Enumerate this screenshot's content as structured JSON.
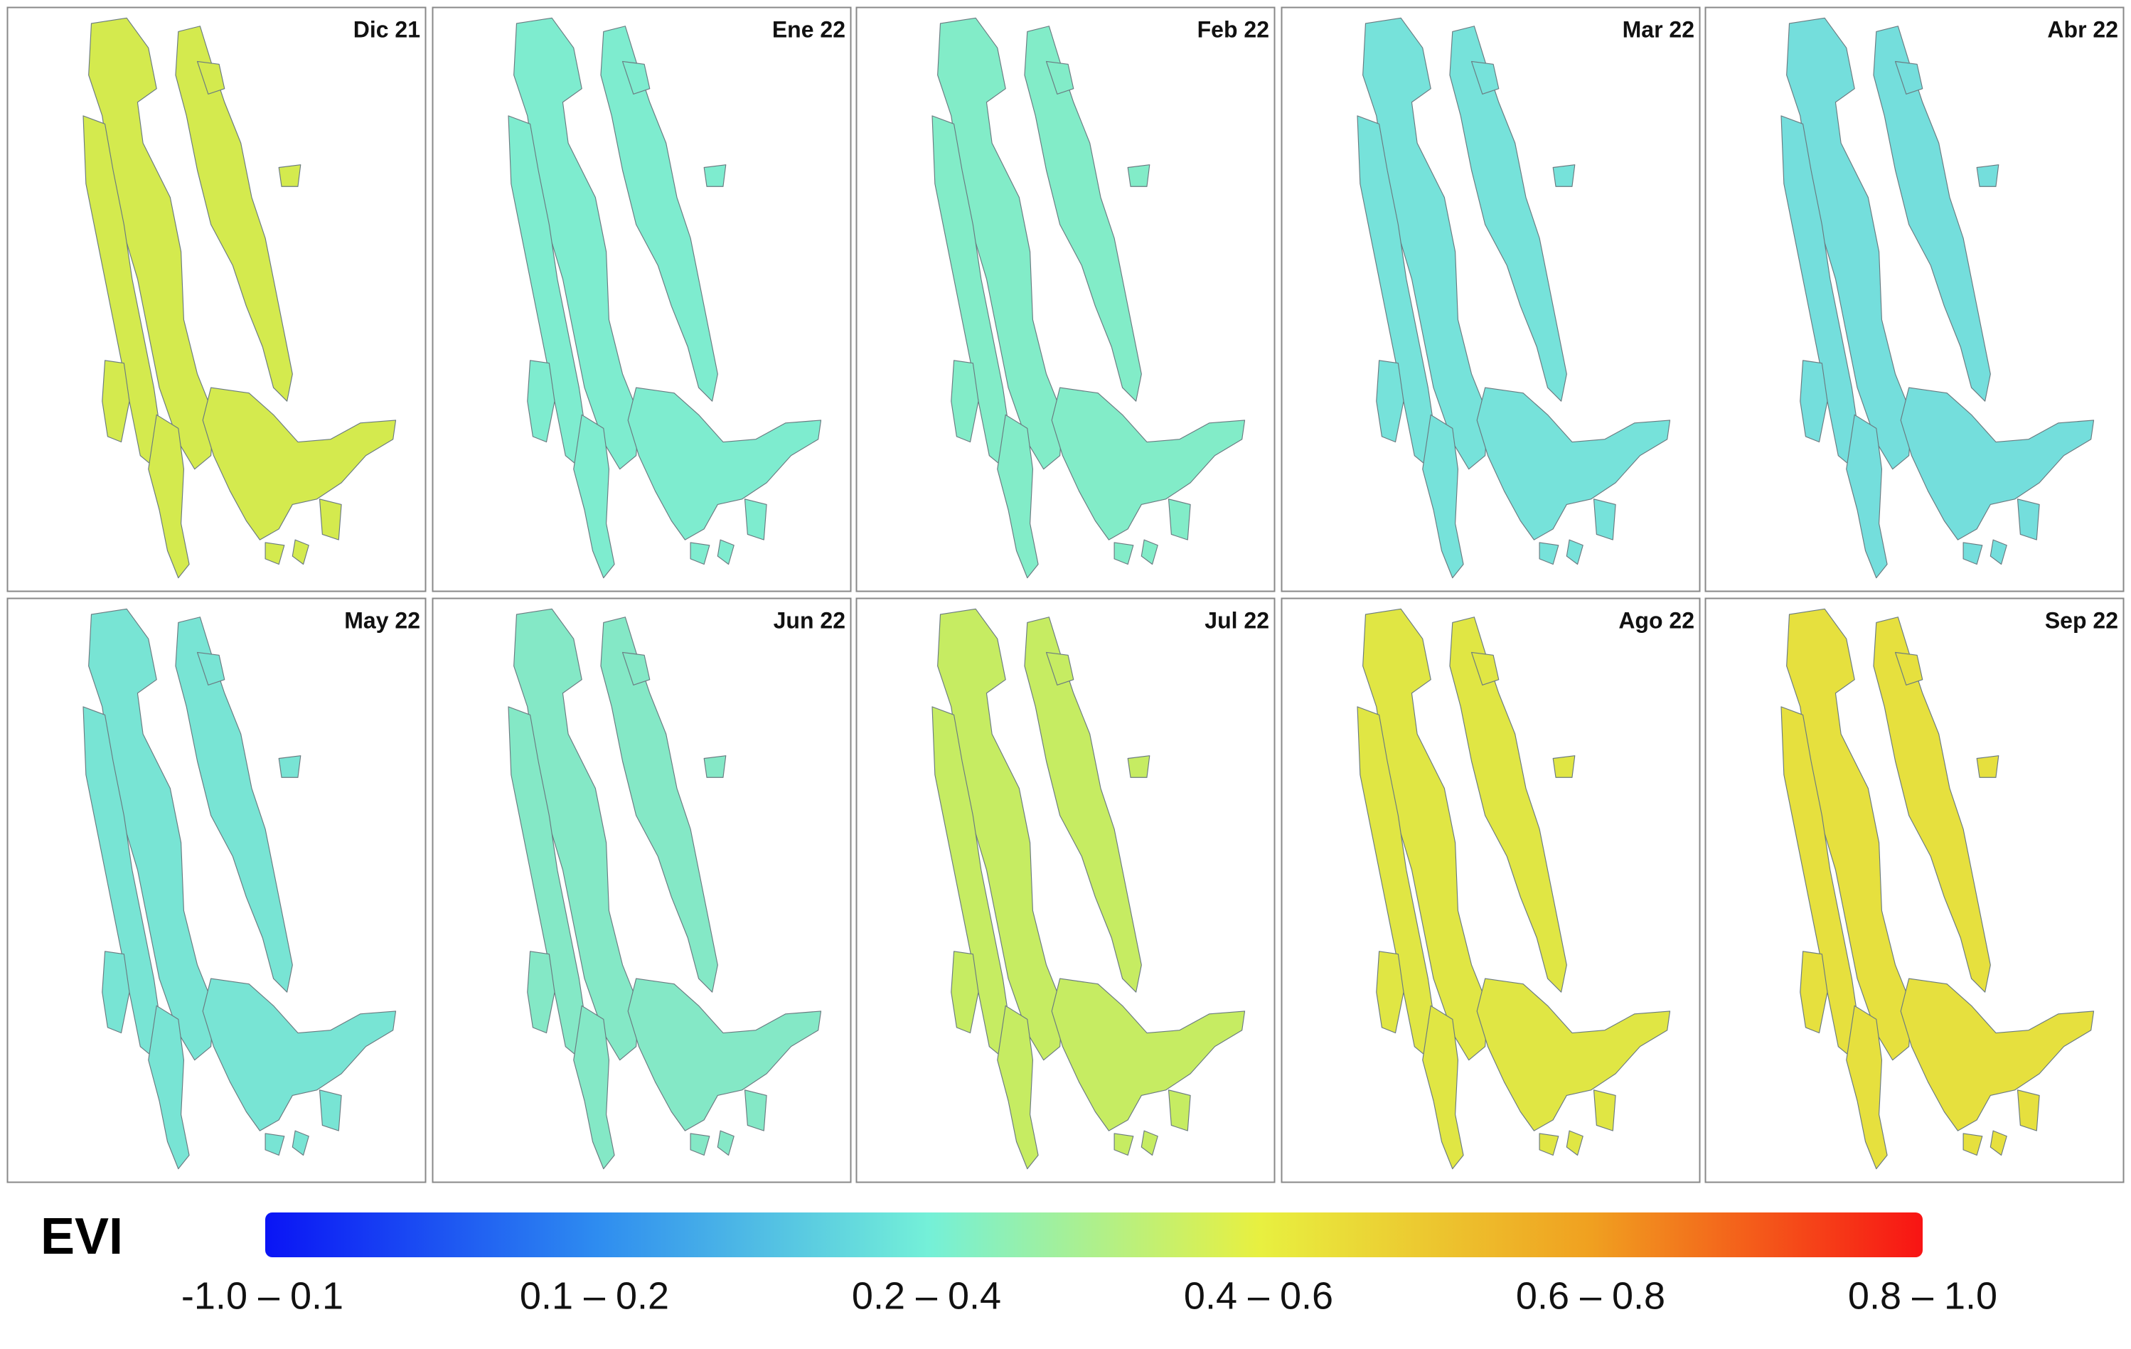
{
  "panels": [
    {
      "label": "Dic 21",
      "color": "#d4ea4e"
    },
    {
      "label": "Ene 22",
      "color": "#7eeccf"
    },
    {
      "label": "Feb 22",
      "color": "#82ecc8"
    },
    {
      "label": "Mar 22",
      "color": "#76e2da"
    },
    {
      "label": "Abr 22",
      "color": "#74dedc"
    },
    {
      "label": "May 22",
      "color": "#78e4d4"
    },
    {
      "label": "Jun 22",
      "color": "#84e8c6"
    },
    {
      "label": "Jul 22",
      "color": "#c6ec62"
    },
    {
      "label": "Ago 22",
      "color": "#e0e644"
    },
    {
      "label": "Sep 22",
      "color": "#e6e03e"
    }
  ],
  "legend": {
    "title": "EVI",
    "colors": [
      "#0a14f5",
      "#2e8cf0",
      "#74f0d8",
      "#e8f040",
      "#f0a020",
      "#f81414"
    ],
    "labels": [
      "-1.0 – 0.1",
      "0.1 – 0.2",
      "0.2 – 0.4",
      "0.4 – 0.6",
      "0.6 – 0.8",
      "0.8 – 1.0"
    ]
  }
}
